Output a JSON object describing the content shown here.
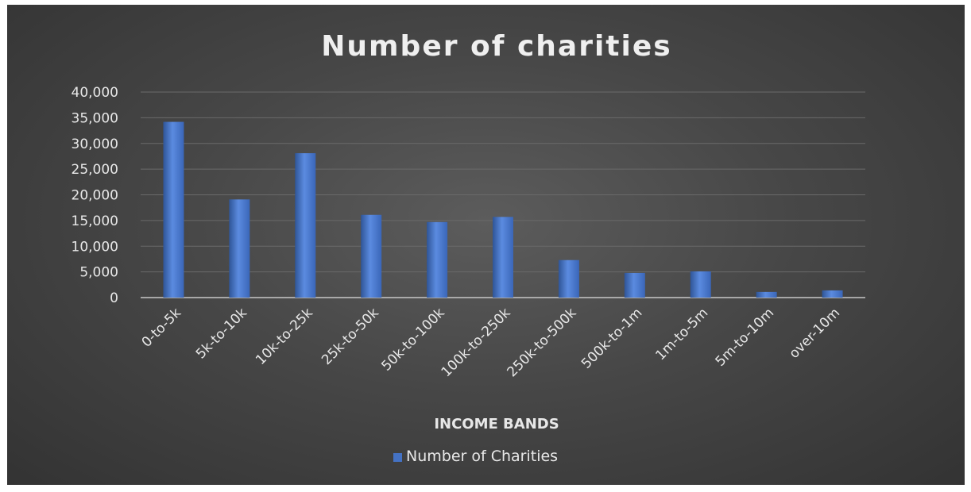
{
  "chart_data": {
    "type": "bar",
    "title": "Number of charities",
    "xlabel": "INCOME BANDS",
    "ylabel": "",
    "categories": [
      "0-to-5k",
      "5k-to-10k",
      "10k-to-25k",
      "25k-to-50k",
      "50k-to-100k",
      "100k-to-250k",
      "250k-to-500k",
      "500k-to-1m",
      "1m-to-5m",
      "5m-to-10m",
      "over-10m"
    ],
    "series": [
      {
        "name": "Number of Charities",
        "values": [
          34200,
          19100,
          28100,
          16100,
          14700,
          15700,
          7300,
          4800,
          5100,
          1100,
          1400
        ]
      }
    ],
    "ylim": [
      0,
      40000
    ],
    "yticks": [
      "0",
      "5,000",
      "10,000",
      "15,000",
      "20,000",
      "25,000",
      "30,000",
      "35,000",
      "40,000"
    ],
    "ytick_values": [
      0,
      5000,
      10000,
      15000,
      20000,
      25000,
      30000,
      35000,
      40000
    ],
    "grid": true,
    "legend_position": "bottom",
    "colors": {
      "bar": "#4472c4",
      "bar_light": "#5b8be0",
      "bar_dark": "#2f5597",
      "background": "#474747"
    }
  }
}
